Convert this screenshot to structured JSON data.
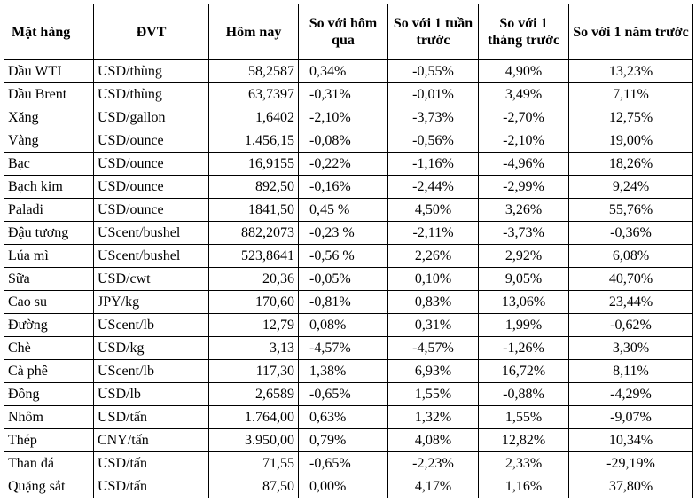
{
  "headers": {
    "item": "Mặt hàng",
    "unit": "ĐVT",
    "today": "Hôm nay",
    "vs_yesterday": "So với hôm qua",
    "vs_week": "So với 1 tuần trước",
    "vs_month": "So với 1 tháng trước",
    "vs_year": "So với 1 năm trước"
  },
  "rows": [
    [
      "Dầu WTI",
      "USD/thùng",
      "58,2587",
      "0,34%",
      "-0,55%",
      "4,90%",
      "13,23%"
    ],
    [
      "Dầu Brent",
      "USD/thùng",
      "63,7397",
      "-0,31%",
      "-0,01%",
      "3,49%",
      "7,11%"
    ],
    [
      "Xăng",
      "USD/gallon",
      "1,6402",
      "-2,10%",
      "-3,73%",
      "-2,70%",
      "12,75%"
    ],
    [
      "Vàng",
      "USD/ounce",
      "1.456,15",
      "-0,08%",
      "-0,56%",
      "-2,10%",
      "19,00%"
    ],
    [
      "Bạc",
      "USD/ounce",
      "16,9155",
      "-0,22%",
      "-1,16%",
      "-4,96%",
      "18,26%"
    ],
    [
      "Bạch kim",
      "USD/ounce",
      "892,50",
      "-0,16%",
      "-2,44%",
      "-2,99%",
      "9,24%"
    ],
    [
      "Paladi",
      "USD/ounce",
      "1841,50",
      "0,45 %",
      "4,50%",
      "3,26%",
      "55,76%"
    ],
    [
      "Đậu tương",
      "UScent/bushel",
      "882,2073",
      "-0,23 %",
      "-2,11%",
      "-3,73%",
      "-0,36%"
    ],
    [
      "Lúa mì",
      "UScent/bushel",
      "523,8641",
      "-0,56 %",
      "2,26%",
      "2,92%",
      "6,08%"
    ],
    [
      "Sữa",
      "USD/cwt",
      "20,36",
      "-0,05%",
      "0,10%",
      "9,05%",
      "40,70%"
    ],
    [
      "Cao su",
      "JPY/kg",
      "170,60",
      "-0,81%",
      "0,83%",
      "13,06%",
      "23,44%"
    ],
    [
      "Đường",
      "UScent/lb",
      "12,79",
      "0,08%",
      "0,31%",
      "1,99%",
      "-0,62%"
    ],
    [
      "Chè",
      "USD/kg",
      "3,13",
      "-4,57%",
      "-4,57%",
      "-1,26%",
      "3,30%"
    ],
    [
      "Cà phê",
      "UScent/lb",
      "117,30",
      "1,38%",
      "6,93%",
      "16,72%",
      "8,11%"
    ],
    [
      "Đồng",
      "USD/lb",
      "2,6589",
      "-0,65%",
      "1,55%",
      "-0,88%",
      "-4,29%"
    ],
    [
      "Nhôm",
      "USD/tấn",
      "1.764,00",
      "0,63%",
      "1,32%",
      "1,55%",
      "-9,07%"
    ],
    [
      "Thép",
      "CNY/tấn",
      "3.950,00",
      "0,79%",
      "4,08%",
      "12,82%",
      "10,34%"
    ],
    [
      "Than đá",
      "USD/tấn",
      "71,55",
      "-0,65%",
      "-2,23%",
      "2,33%",
      "-29,19%"
    ],
    [
      "Quặng sắt",
      "USD/tấn",
      "87,50",
      "0,00%",
      "4,17%",
      "1,16%",
      "37,80%"
    ]
  ]
}
